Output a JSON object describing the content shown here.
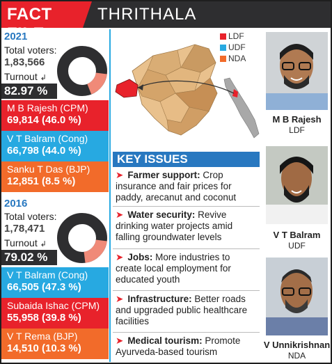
{
  "header": {
    "label": "FACT FILE",
    "place": "THRITHALA"
  },
  "legend": [
    {
      "name": "LDF",
      "color": "#e8222b"
    },
    {
      "name": "UDF",
      "color": "#27a9e1"
    },
    {
      "name": "NDA",
      "color": "#f26b2a"
    }
  ],
  "y2021": {
    "year": "2021",
    "total_voters_label": "Total voters:",
    "total_voters": "1,83,566",
    "turnout_label": "Turnout",
    "turnout": "82.97 %",
    "turnout_fraction": 0.8297,
    "candidates": [
      {
        "name": "M B Rajesh (CPM)",
        "votes": "69,814 (46.0 %)",
        "color": "#e8222b"
      },
      {
        "name": "V T Balram (Cong)",
        "votes": "66,798 (44.0 %)",
        "color": "#27a9e1"
      },
      {
        "name": "Sanku T Das (BJP)",
        "votes": "12,851 (8.5 %)",
        "color": "#f26b2a"
      }
    ]
  },
  "y2016": {
    "year": "2016",
    "total_voters_label": "Total voters:",
    "total_voters": "1,78,471",
    "turnout_label": "Turnout",
    "turnout": "79.02 %",
    "turnout_fraction": 0.7902,
    "candidates": [
      {
        "name": "V T Balram (Cong)",
        "votes": "66,505 (47.3 %)",
        "color": "#27a9e1"
      },
      {
        "name": "Subaida Ishac (CPM)",
        "votes": "55,958 (39.8 %)",
        "color": "#e8222b"
      },
      {
        "name": "V T Rema (BJP)",
        "votes": "14,510 (10.3 %)",
        "color": "#f26b2a"
      }
    ]
  },
  "key_issues": {
    "title": "KEY ISSUES",
    "items": [
      {
        "head": "Farmer support:",
        "text": "Crop insurance and fair prices for paddy, arecanut and coconut"
      },
      {
        "head": "Water security:",
        "text": "Revive drinking water projects amid falling groundwater levels"
      },
      {
        "head": "Jobs:",
        "text": "More industries to create local employment for educated youth"
      },
      {
        "head": "Infrastructure:",
        "text": "Better roads and upgraded public healthcare facilities"
      },
      {
        "head": "Medical tourism:",
        "text": "Promote Ayurveda-based tourism"
      }
    ]
  },
  "profiles": [
    {
      "name": "M B Rajesh",
      "party": "LDF"
    },
    {
      "name": "V T Balram",
      "party": "UDF"
    },
    {
      "name": "V Unnikrishnan",
      "party": "NDA"
    }
  ]
}
